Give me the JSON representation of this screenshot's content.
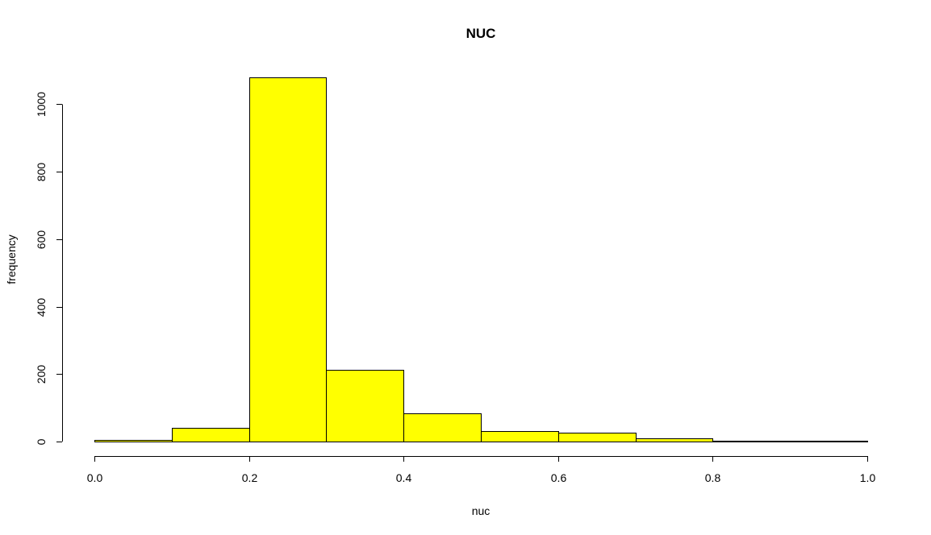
{
  "chart_data": {
    "type": "bar",
    "title": "NUC",
    "xlabel": "nuc",
    "ylabel": "frequency",
    "bin_edges": [
      0.0,
      0.1,
      0.2,
      0.3,
      0.4,
      0.5,
      0.6,
      0.7,
      0.8,
      0.9,
      1.0
    ],
    "values": [
      4,
      40,
      1080,
      212,
      83,
      31,
      26,
      9,
      3,
      2
    ],
    "xlim": [
      0.0,
      1.0
    ],
    "ylim": [
      0,
      1080
    ],
    "x_ticks": [
      "0.0",
      "0.2",
      "0.4",
      "0.6",
      "0.8",
      "1.0"
    ],
    "y_ticks": [
      "0",
      "200",
      "400",
      "600",
      "800",
      "1000"
    ],
    "bar_color": "#ffff00",
    "bar_border_color": "#000000",
    "grid": false,
    "legend": "none"
  }
}
